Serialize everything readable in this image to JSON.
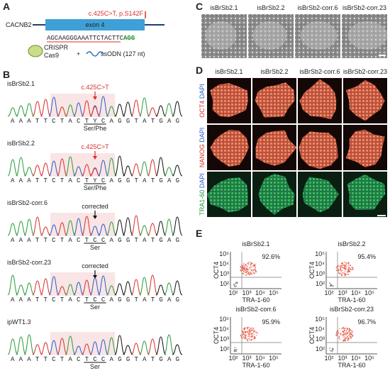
{
  "panels": {
    "a": {
      "label": "A",
      "gene": "CACNB2",
      "exon": "exon 4",
      "mutation": "c.425C>T, p.S142F",
      "sequence": "AGCAAGGGAAATTCTACTTC",
      "pam": "AGG",
      "crispr": "CRISPR",
      "cas9": "Cas9",
      "plus": "+",
      "ssodn": "ssODN (127 nt)"
    },
    "b": {
      "label": "B",
      "traces": [
        {
          "name": "isBrSb2.1",
          "annotation": "c.425C>T",
          "bases": "AAATTCTACTYCAGGTATGAG",
          "codon": "Ser/Phe"
        },
        {
          "name": "isBrSb2.2",
          "annotation": "c.425C>T",
          "bases": "AAATTCTACTYCAGGTATGAG",
          "codon": "Ser/Phe"
        },
        {
          "name": "isBrSb2-corr.6",
          "annotation": "corrected",
          "bases": "AAATTCTACTCCAGGTATGAG",
          "codon": "Ser"
        },
        {
          "name": "isBrSb2-corr.23",
          "annotation": "corrected",
          "bases": "AAATTCTACTCCAGGTATGAG",
          "codon": "Ser"
        },
        {
          "name": "ipWT1.3",
          "bases": "AAATTCTACTCCAGGTATGAG",
          "codon": "Ser"
        }
      ]
    },
    "c": {
      "label": "C",
      "columns": [
        "isBrSb2.1",
        "isBrSb2.2",
        "isBrSb2-corr.6",
        "isBrSb2-corr.23"
      ]
    },
    "d": {
      "label": "D",
      "columns": [
        "isBrSb2.1",
        "isBrSb2.2",
        "isBrSb2-corr.6",
        "isBrSb2-corr.23"
      ],
      "rows": [
        {
          "marker": "OCT4",
          "counterstain": "DAPI"
        },
        {
          "marker": "NANOG",
          "counterstain": "DAPI"
        },
        {
          "marker": "TRA1-60",
          "counterstain": "DAPI"
        }
      ]
    },
    "e": {
      "label": "E",
      "y_label": "OCT4",
      "x_label": "TRA-1-60",
      "ticks": [
        "10²",
        "10³",
        "10⁴",
        "10⁵"
      ],
      "plots": [
        {
          "name": "isBrSb2.1",
          "percent": "92.6%"
        },
        {
          "name": "isBrSb2.2",
          "percent": "95.4%"
        },
        {
          "name": "isBrSb2-corr.6",
          "percent": "95.9%"
        },
        {
          "name": "isBrSb2-corr.23",
          "percent": "96.7%"
        }
      ]
    }
  }
}
